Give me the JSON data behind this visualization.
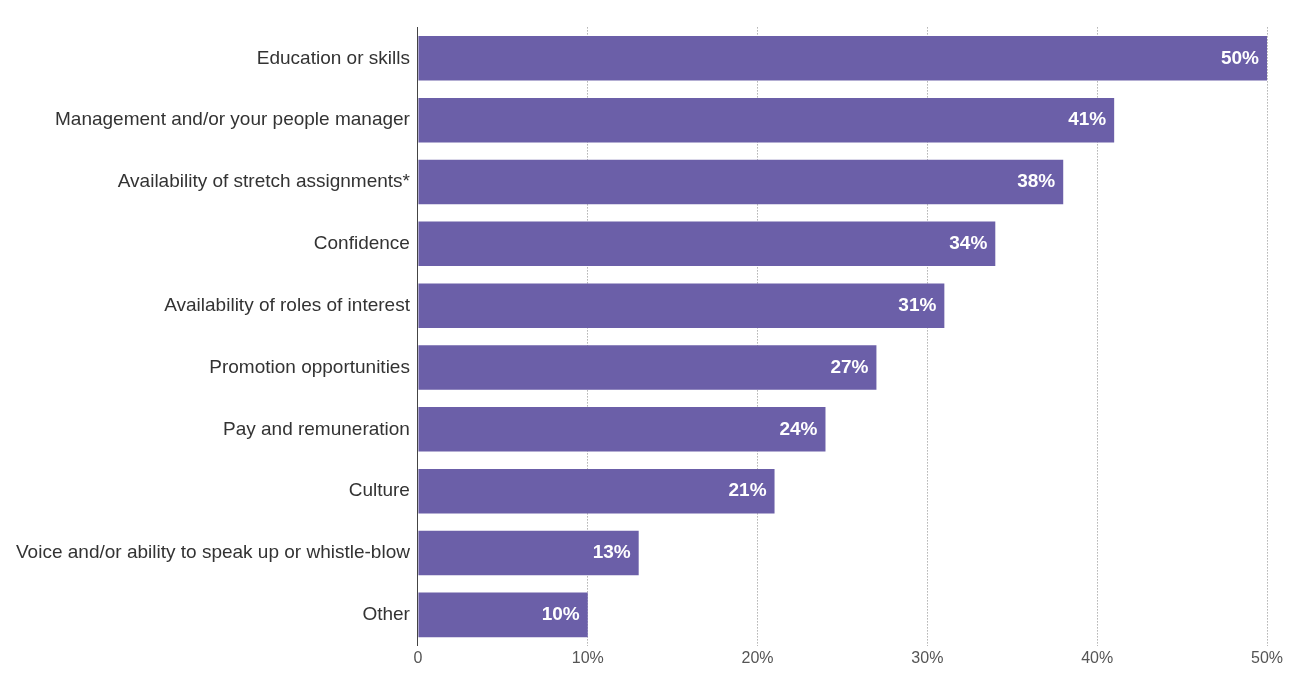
{
  "chart_data": {
    "type": "bar",
    "orientation": "horizontal",
    "categories": [
      "Education or skills",
      "Management and/or your people manager",
      "Availability of stretch assignments*",
      "Confidence",
      "Availability of roles of interest",
      "Promotion opportunities",
      "Pay and remuneration",
      "Culture",
      "Voice and/or ability to speak up or whistle-blow",
      "Other"
    ],
    "values": [
      50,
      41,
      38,
      34,
      31,
      27,
      24,
      21,
      13,
      10
    ],
    "value_labels": [
      "50%",
      "41%",
      "38%",
      "34%",
      "31%",
      "27%",
      "24%",
      "21%",
      "13%",
      "10%"
    ],
    "color": "#6b5fa8",
    "xlim": [
      0,
      50
    ],
    "xticks": [
      0,
      {
        "value": 10,
        "label": "10%"
      },
      {
        "value": 20,
        "label": "20%"
      },
      {
        "value": 30,
        "label": "30%"
      },
      {
        "value": 40,
        "label": "40%"
      },
      {
        "value": 50,
        "label": "50%"
      }
    ],
    "grid": "x",
    "legend": false
  }
}
